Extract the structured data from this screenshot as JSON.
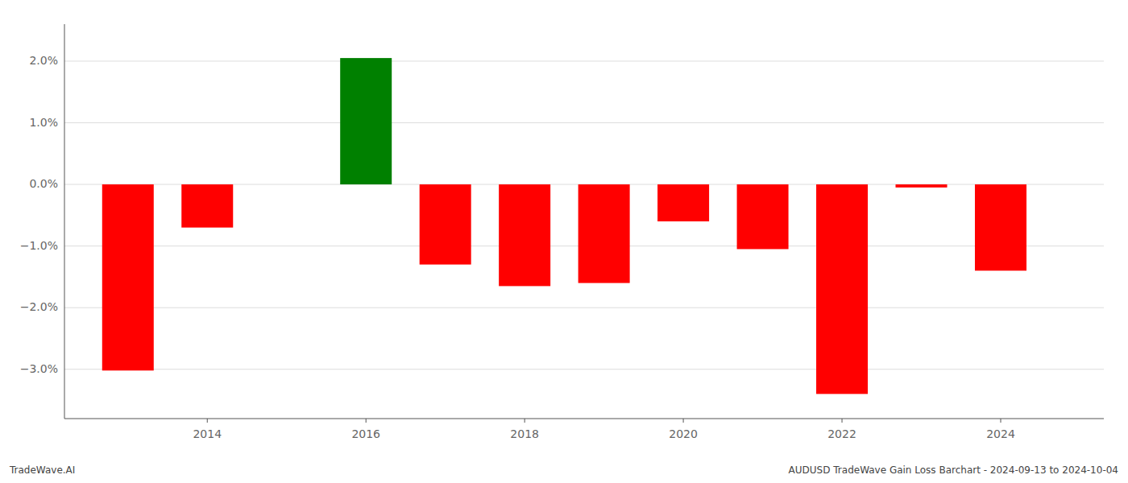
{
  "chart_data": {
    "type": "bar",
    "x": [
      2013,
      2014,
      2016,
      2017,
      2018,
      2019,
      2020,
      2021,
      2022,
      2023,
      2024
    ],
    "values": [
      -3.02,
      -0.7,
      2.05,
      -1.3,
      -1.65,
      -1.6,
      -0.6,
      -1.05,
      -3.4,
      -0.05,
      -1.4
    ],
    "colors": [
      "#ff0000",
      "#ff0000",
      "#008000",
      "#ff0000",
      "#ff0000",
      "#ff0000",
      "#ff0000",
      "#ff0000",
      "#ff0000",
      "#ff0000",
      "#ff0000"
    ],
    "xlim": [
      2012.2,
      2025.3
    ],
    "xticks": [
      2014,
      2016,
      2018,
      2020,
      2022,
      2024
    ],
    "ylim": [
      -3.8,
      2.6
    ],
    "yticks": [
      {
        "value": -3.0,
        "label": "−3.0%"
      },
      {
        "value": -2.0,
        "label": "−2.0%"
      },
      {
        "value": -1.0,
        "label": "−1.0%"
      },
      {
        "value": 0.0,
        "label": "0.0%"
      },
      {
        "value": 1.0,
        "label": "1.0%"
      },
      {
        "value": 2.0,
        "label": "2.0%"
      }
    ],
    "grid": true,
    "annotations": [
      "TradeWave.AI",
      "AUDUSD TradeWave Gain Loss Barchart - 2024-09-13 to 2024-10-04"
    ]
  }
}
